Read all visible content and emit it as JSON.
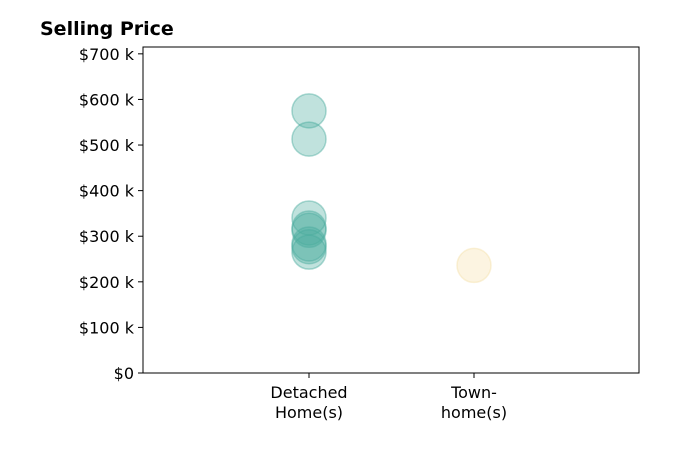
{
  "chart_data": {
    "type": "scatter",
    "title": "Selling Price",
    "xlabel": "",
    "ylabel": "",
    "categories": [
      [
        "Detached",
        "Home(s)"
      ],
      [
        "Town-",
        "home(s)"
      ]
    ],
    "ylim": [
      0,
      715000
    ],
    "yticks": [
      0,
      100000,
      200000,
      300000,
      400000,
      500000,
      600000,
      700000
    ],
    "ytick_labels": [
      "$0",
      "$100 k",
      "$200 k",
      "$300 k",
      "$400 k",
      "$500 k",
      "$600 k",
      "$700 k"
    ],
    "grid": false,
    "legend": "none",
    "series": [
      {
        "category": 0,
        "color": "#4aab9e",
        "values": [
          575000,
          513000,
          340000,
          318000,
          313000,
          283000,
          277000,
          265000
        ]
      },
      {
        "category": 1,
        "color": "#f5dfa8",
        "values": [
          236000
        ]
      }
    ]
  }
}
